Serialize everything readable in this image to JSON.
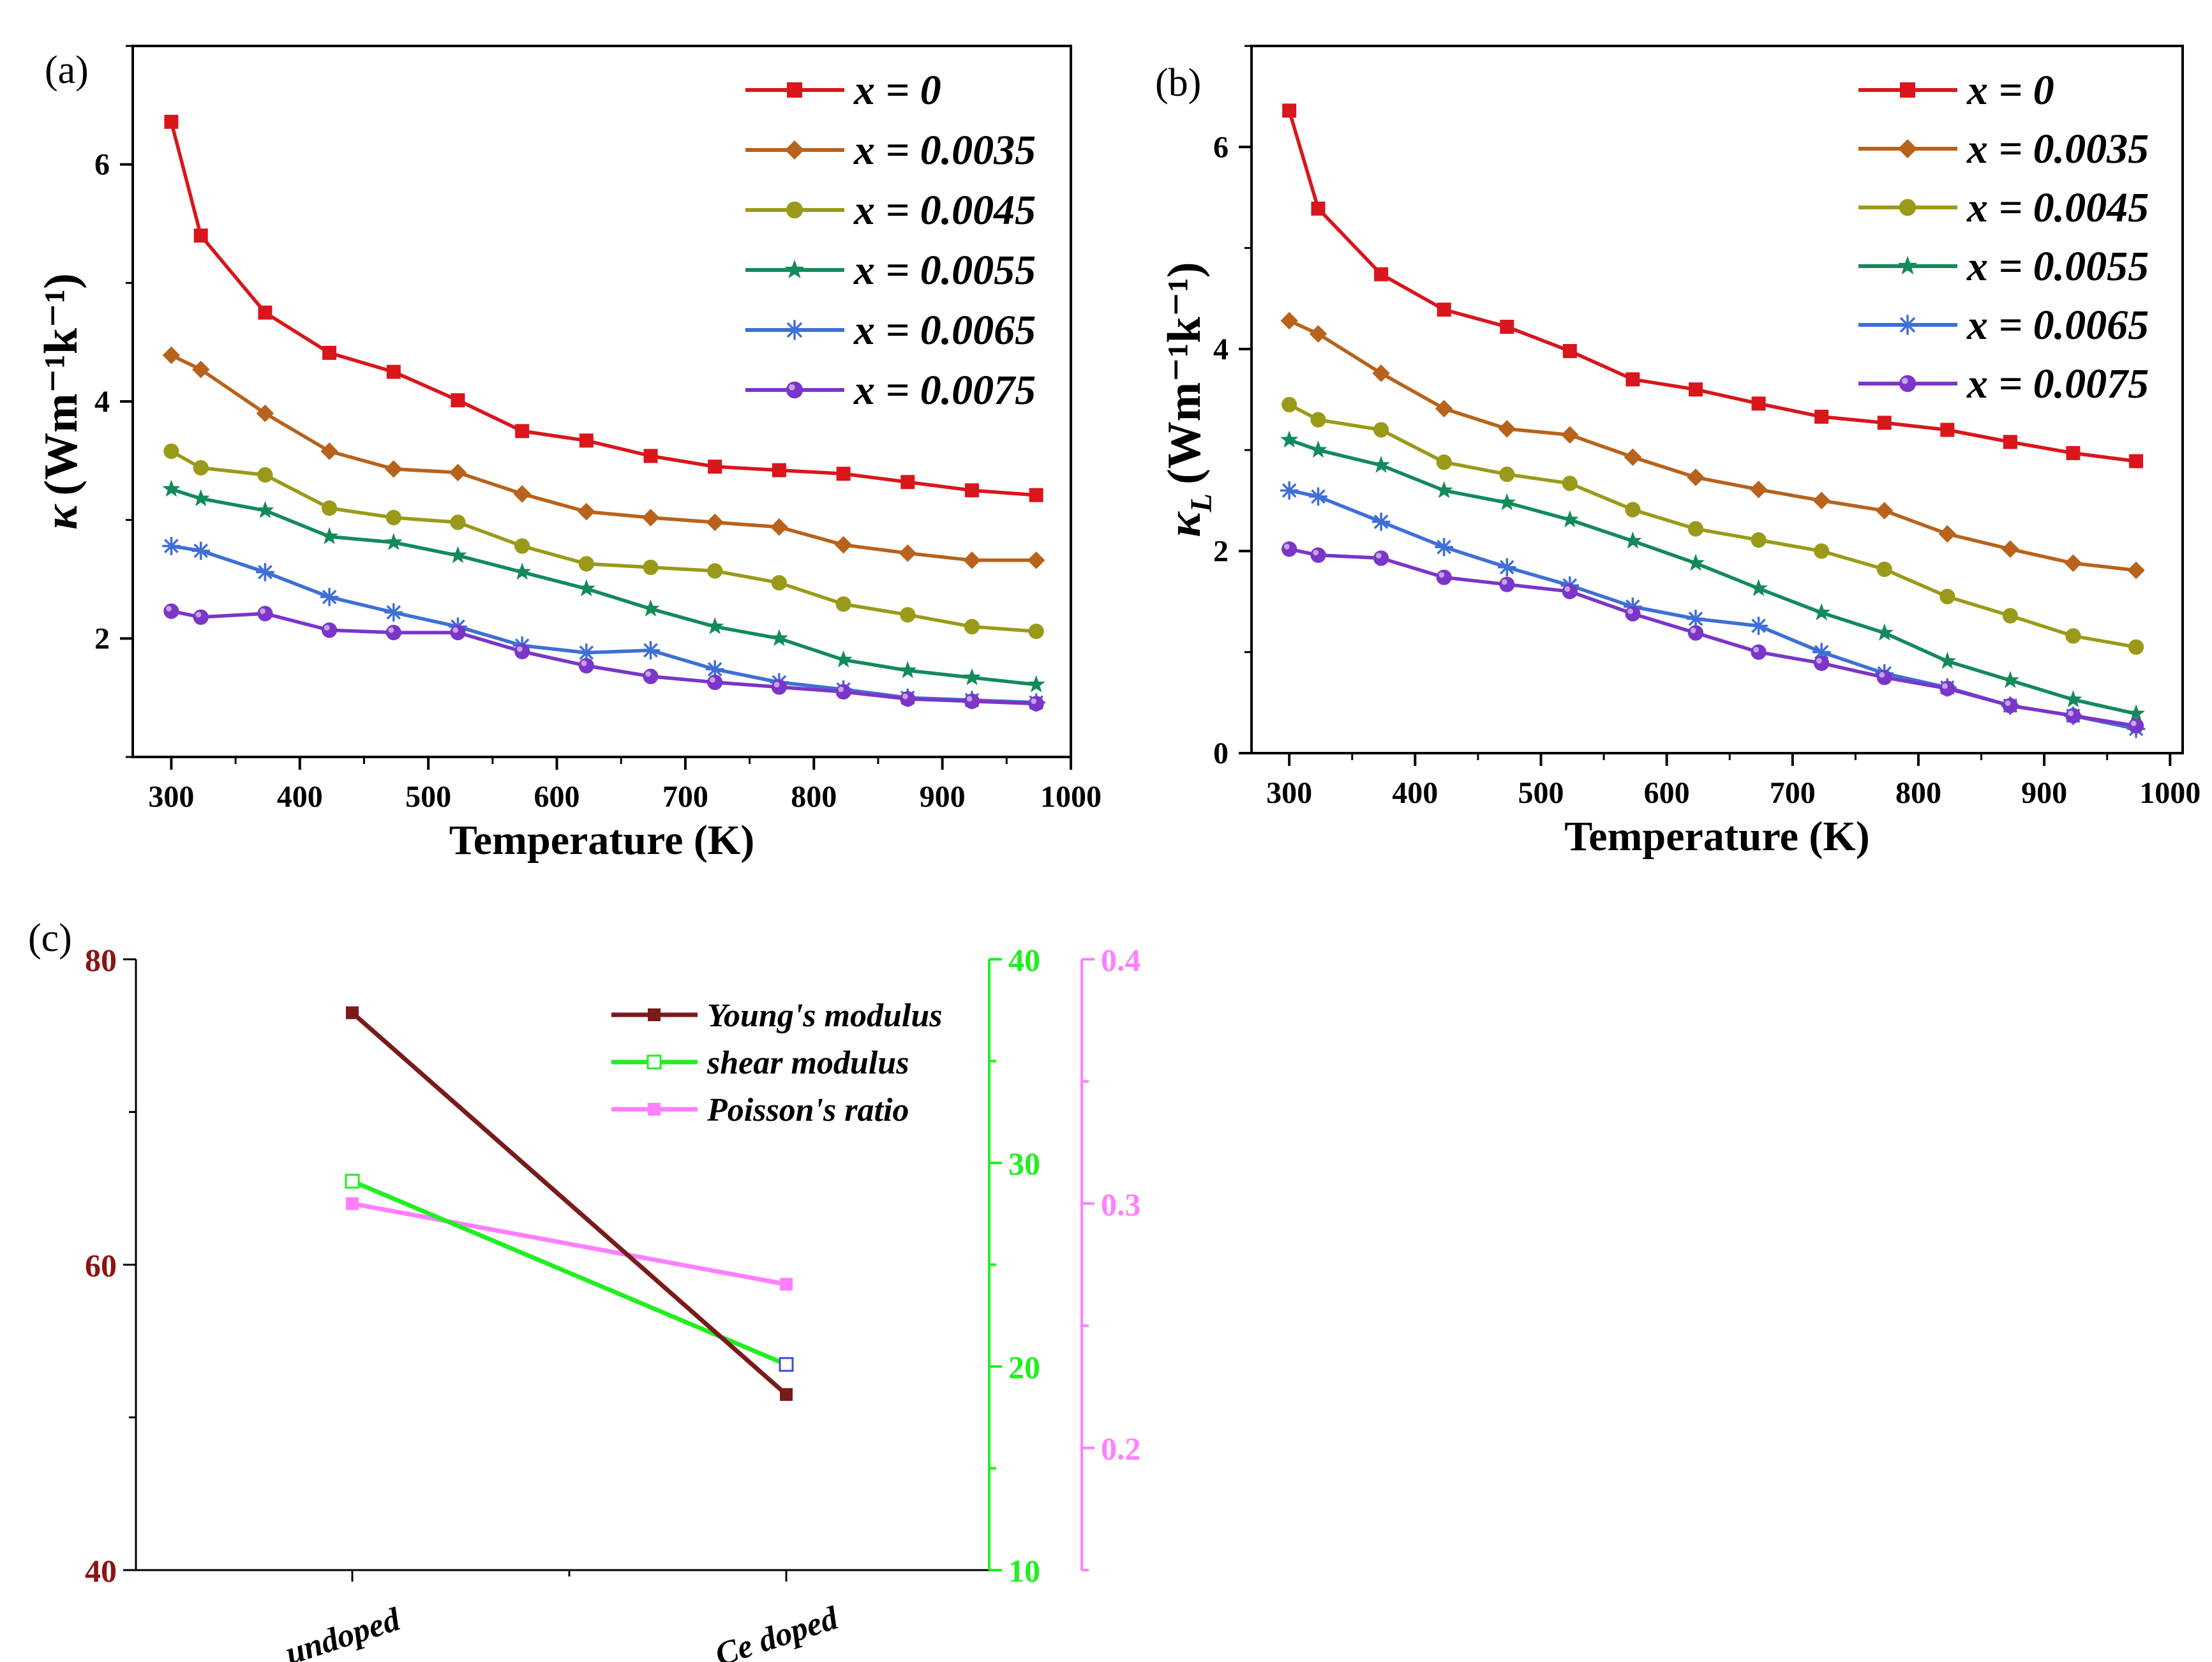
{
  "chart_data": [
    {
      "id": "a",
      "type": "line",
      "panel_label": "(a)",
      "xlabel": "Temperature (K)",
      "ylabel_main": "κ",
      "ylabel_sub": "",
      "ylabel_units": "(Wm⁻¹k⁻¹)",
      "xlim": [
        270,
        1000
      ],
      "ylim": [
        1,
        7
      ],
      "xticks": [
        300,
        400,
        500,
        600,
        700,
        800,
        900,
        1000
      ],
      "yticks": [
        2,
        4,
        6
      ],
      "x": [
        300,
        323,
        373,
        423,
        473,
        523,
        573,
        623,
        673,
        723,
        773,
        823,
        873,
        923,
        973
      ],
      "legend_position": "top-right",
      "series": [
        {
          "name": "x = 0",
          "color": "#D9161B",
          "marker": "square",
          "values": [
            6.36,
            5.4,
            4.75,
            4.41,
            4.25,
            4.01,
            3.75,
            3.67,
            3.54,
            3.45,
            3.42,
            3.39,
            3.32,
            3.25,
            3.21
          ]
        },
        {
          "name": "x = 0.0035",
          "color": "#B8621B",
          "marker": "diamond",
          "values": [
            4.39,
            4.27,
            3.9,
            3.58,
            3.43,
            3.4,
            3.22,
            3.07,
            3.02,
            2.98,
            2.94,
            2.79,
            2.72,
            2.66,
            2.66
          ]
        },
        {
          "name": "x = 0.0045",
          "color": "#9A9A1A",
          "marker": "circle",
          "values": [
            3.58,
            3.44,
            3.38,
            3.1,
            3.02,
            2.98,
            2.78,
            2.63,
            2.6,
            2.57,
            2.47,
            2.29,
            2.2,
            2.1,
            2.06
          ]
        },
        {
          "name": "x = 0.0055",
          "color": "#138A5A",
          "marker": "star",
          "values": [
            3.26,
            3.18,
            3.08,
            2.86,
            2.81,
            2.7,
            2.56,
            2.42,
            2.25,
            2.1,
            2.0,
            1.82,
            1.73,
            1.67,
            1.61
          ]
        },
        {
          "name": "x = 0.0065",
          "color": "#3E6FD6",
          "marker": "asterisk",
          "values": [
            2.78,
            2.74,
            2.56,
            2.35,
            2.22,
            2.1,
            1.94,
            1.88,
            1.9,
            1.74,
            1.63,
            1.57,
            1.5,
            1.48,
            1.46
          ]
        },
        {
          "name": "x = 0.0075",
          "color": "#7B35C8",
          "marker": "sphere",
          "values": [
            2.23,
            2.18,
            2.21,
            2.07,
            2.05,
            2.05,
            1.89,
            1.77,
            1.68,
            1.63,
            1.59,
            1.55,
            1.49,
            1.47,
            1.45
          ]
        }
      ]
    },
    {
      "id": "b",
      "type": "line",
      "panel_label": "(b)",
      "xlabel": "Temperature (K)",
      "ylabel_main": "κ",
      "ylabel_sub": "L",
      "ylabel_units": "(Wm⁻¹k⁻¹)",
      "xlim": [
        270,
        1010
      ],
      "ylim": [
        0,
        7
      ],
      "xticks": [
        300,
        400,
        500,
        600,
        700,
        800,
        900,
        1000
      ],
      "yticks": [
        0,
        2,
        4,
        6
      ],
      "x": [
        300,
        323,
        373,
        423,
        473,
        523,
        573,
        623,
        673,
        723,
        773,
        823,
        873,
        923,
        973
      ],
      "legend_position": "top-right",
      "series": [
        {
          "name": "x = 0",
          "color": "#D9161B",
          "marker": "square",
          "values": [
            6.36,
            5.39,
            4.74,
            4.39,
            4.22,
            3.98,
            3.7,
            3.6,
            3.46,
            3.33,
            3.27,
            3.2,
            3.08,
            2.97,
            2.89
          ]
        },
        {
          "name": "x = 0.0035",
          "color": "#B8621B",
          "marker": "diamond",
          "values": [
            4.28,
            4.15,
            3.76,
            3.41,
            3.21,
            3.15,
            2.93,
            2.73,
            2.61,
            2.5,
            2.4,
            2.17,
            2.02,
            1.88,
            1.81
          ]
        },
        {
          "name": "x = 0.0045",
          "color": "#9A9A1A",
          "marker": "circle",
          "values": [
            3.45,
            3.3,
            3.2,
            2.88,
            2.76,
            2.67,
            2.41,
            2.22,
            2.11,
            2.0,
            1.82,
            1.55,
            1.36,
            1.16,
            1.05
          ]
        },
        {
          "name": "x = 0.0055",
          "color": "#138A5A",
          "marker": "star",
          "values": [
            3.1,
            3.0,
            2.85,
            2.6,
            2.48,
            2.31,
            2.1,
            1.88,
            1.63,
            1.39,
            1.19,
            0.91,
            0.72,
            0.53,
            0.39
          ]
        },
        {
          "name": "x = 0.0065",
          "color": "#3E6FD6",
          "marker": "asterisk",
          "values": [
            2.6,
            2.54,
            2.29,
            2.04,
            1.84,
            1.66,
            1.45,
            1.33,
            1.26,
            1.0,
            0.79,
            0.65,
            0.47,
            0.37,
            0.24
          ]
        },
        {
          "name": "x = 0.0075",
          "color": "#7B35C8",
          "marker": "sphere",
          "values": [
            2.02,
            1.96,
            1.93,
            1.74,
            1.67,
            1.6,
            1.38,
            1.19,
            1.0,
            0.89,
            0.75,
            0.64,
            0.47,
            0.37,
            0.27
          ]
        }
      ]
    },
    {
      "id": "c",
      "type": "line",
      "panel_label": "(c)",
      "categories": [
        "undoped",
        "Ce doped"
      ],
      "axes": {
        "left": {
          "range": [
            40,
            80
          ],
          "ticks": [
            "40",
            "60",
            "80"
          ],
          "color": "#8B1414"
        },
        "middle": {
          "range": [
            10,
            40
          ],
          "ticks": [
            "10",
            "20",
            "30",
            "40"
          ],
          "color": "#22EE22"
        },
        "right": {
          "range": [
            0.15,
            0.4
          ],
          "ticks": [
            "0.2",
            "0.3",
            "0.4"
          ],
          "color": "#FF7FFF"
        }
      },
      "legend_position": "top-right",
      "series": [
        {
          "name": "Young's modulus",
          "axis": "left",
          "color": "#7A1A1A",
          "marker": "square",
          "values": [
            76.5,
            51.5
          ]
        },
        {
          "name": "shear modulus",
          "axis": "middle",
          "color": "#22EE22",
          "marker": "open-square",
          "values": [
            29.1,
            20.1
          ]
        },
        {
          "name": "Poisson's ratio",
          "axis": "right",
          "color": "#FF7FFF",
          "marker": "square",
          "values": [
            0.3,
            0.267
          ]
        }
      ]
    }
  ]
}
